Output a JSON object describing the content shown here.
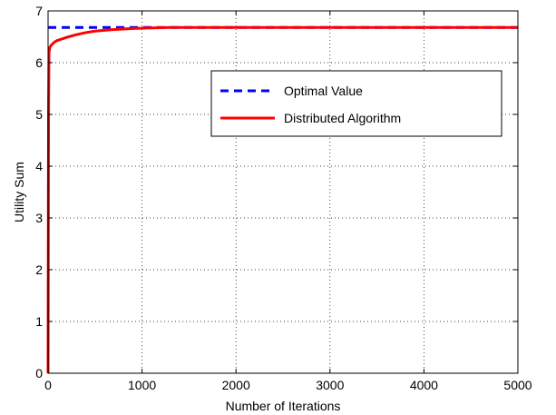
{
  "chart_data": {
    "type": "line",
    "title": "",
    "xlabel": "Number of Iterations",
    "ylabel": "Utility Sum",
    "xlim": [
      0,
      5000
    ],
    "ylim": [
      0,
      7
    ],
    "xticks": [
      0,
      1000,
      2000,
      3000,
      4000,
      5000
    ],
    "yticks": [
      0,
      1,
      2,
      3,
      4,
      5,
      6,
      7
    ],
    "grid": true,
    "legend_position": "center-right",
    "series": [
      {
        "name": "Optimal Value",
        "color": "#0000ff",
        "style": "dashed",
        "x": [
          0,
          5000
        ],
        "y": [
          6.68,
          6.68
        ]
      },
      {
        "name": "Distributed Algorithm",
        "color": "#ff0000",
        "style": "solid",
        "x": [
          0,
          5,
          10,
          20,
          40,
          70,
          100,
          150,
          200,
          300,
          400,
          500,
          700,
          900,
          1100,
          1300,
          1600,
          2000,
          3000,
          4000,
          5000
        ],
        "y": [
          0,
          5.0,
          6.2,
          6.3,
          6.35,
          6.4,
          6.43,
          6.46,
          6.49,
          6.54,
          6.58,
          6.61,
          6.64,
          6.66,
          6.67,
          6.68,
          6.68,
          6.68,
          6.68,
          6.68,
          6.68
        ]
      }
    ]
  }
}
